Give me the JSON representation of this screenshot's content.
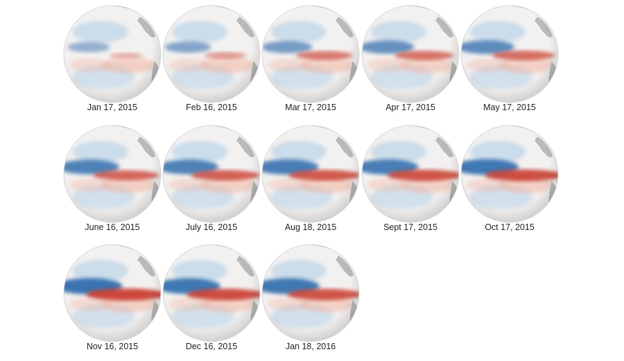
{
  "maps": [
    {
      "date": "Jan 17, 2015",
      "intensity": 0.15,
      "west_cool": 0.35
    },
    {
      "date": "Feb 16, 2015",
      "intensity": 0.3,
      "west_cool": 0.45
    },
    {
      "date": "Mar 17, 2015",
      "intensity": 0.55,
      "west_cool": 0.55
    },
    {
      "date": "Apr 17, 2015",
      "intensity": 0.6,
      "west_cool": 0.65
    },
    {
      "date": "May 17, 2015",
      "intensity": 0.65,
      "west_cool": 0.7
    },
    {
      "date": "June 16, 2015",
      "intensity": 0.7,
      "west_cool": 0.8
    },
    {
      "date": "July 16, 2015",
      "intensity": 0.75,
      "west_cool": 0.8
    },
    {
      "date": "Aug 18, 2015",
      "intensity": 0.8,
      "west_cool": 0.85
    },
    {
      "date": "Sept 17, 2015",
      "intensity": 0.85,
      "west_cool": 0.85
    },
    {
      "date": "Oct 17, 2015",
      "intensity": 0.9,
      "west_cool": 0.9
    },
    {
      "date": "Nov 16, 2015",
      "intensity": 0.95,
      "west_cool": 0.95
    },
    {
      "date": "Dec 16, 2015",
      "intensity": 0.9,
      "west_cool": 0.9
    },
    {
      "date": "Jan 18, 2016",
      "intensity": 0.85,
      "west_cool": 0.9
    }
  ],
  "colors": {
    "warm": "#c8392b",
    "warm_light": "#f2b09a",
    "cool": "#1f5fa6",
    "cool_light": "#a9cbe6",
    "land": "#b9b9b9",
    "ocean_neutral": "#f3f1f0"
  }
}
